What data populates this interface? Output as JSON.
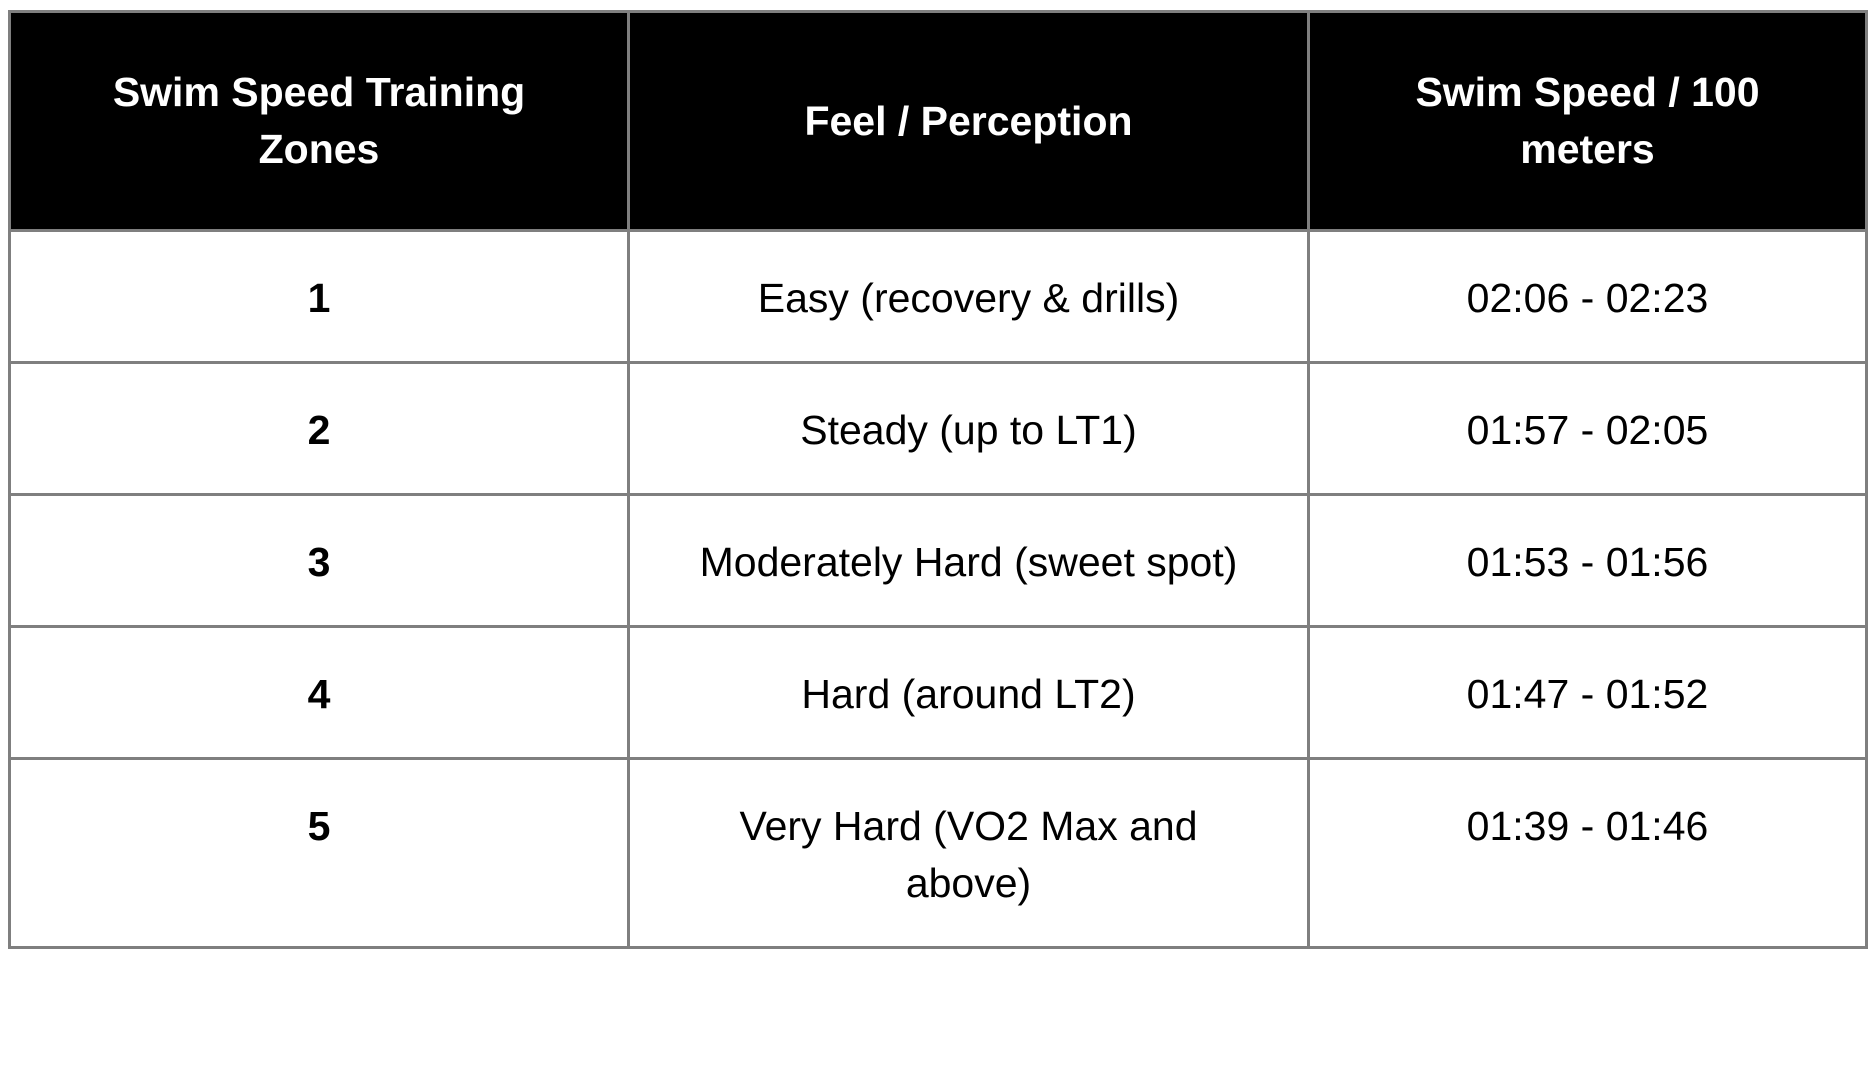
{
  "table": {
    "header": [
      "Swim Speed Training Zones",
      "Feel / Perception",
      "Swim Speed / 100 meters"
    ],
    "rows": [
      [
        "1",
        "Easy (recovery & drills)",
        "02:06 - 02:23"
      ],
      [
        "2",
        "Steady (up to LT1)",
        "01:57 - 02:05"
      ],
      [
        "3",
        "Moderately Hard (sweet spot)",
        "01:53 - 01:56"
      ],
      [
        "4",
        "Hard (around LT2)",
        "01:47 - 01:52"
      ],
      [
        "5",
        "Very Hard (VO2 Max and above)",
        "01:39 - 01:46"
      ]
    ]
  }
}
